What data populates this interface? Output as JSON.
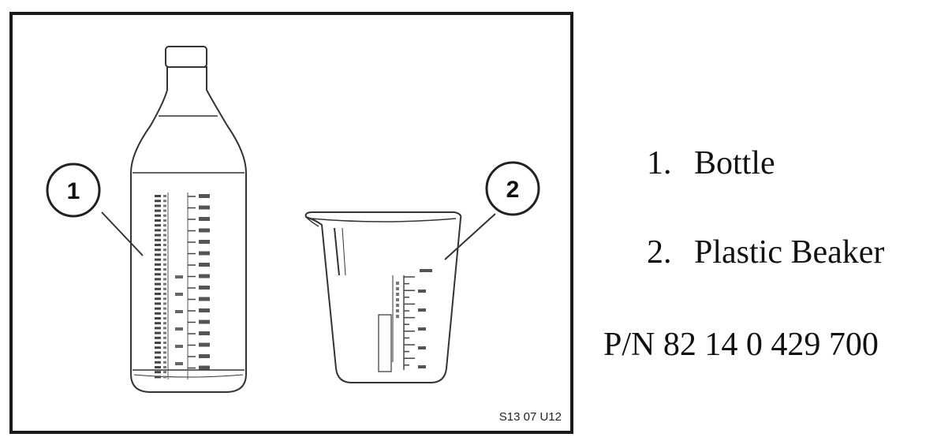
{
  "figure": {
    "callouts": [
      {
        "number": "1",
        "label": "Bottle"
      },
      {
        "number": "2",
        "label": "Plastic Beaker"
      }
    ],
    "figure_code": "S13 07 U12"
  },
  "legend": {
    "items": [
      {
        "number": "1.",
        "label": "Bottle"
      },
      {
        "number": "2.",
        "label": "Plastic Beaker"
      }
    ],
    "part_number": "P/N 82 14 0 429 700"
  },
  "colors": {
    "line": "#333333",
    "frame": "#1a1a1a"
  }
}
